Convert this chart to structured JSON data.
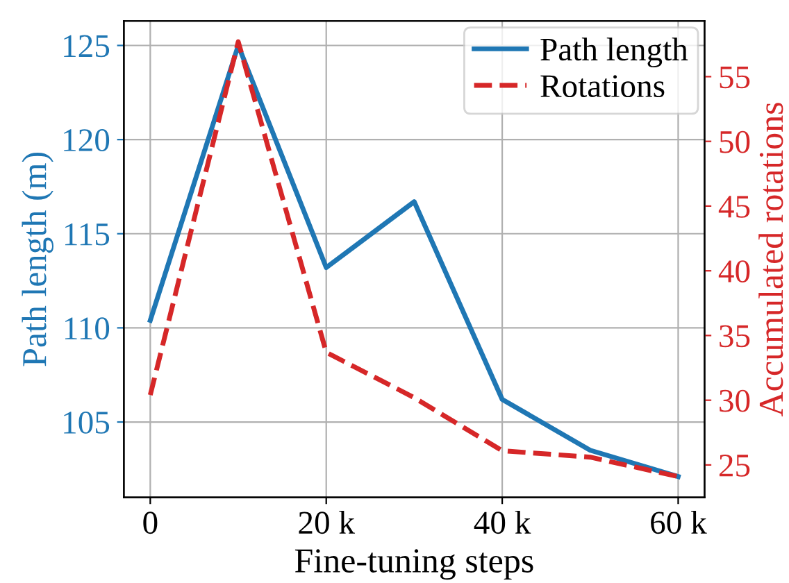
{
  "chart_data": {
    "type": "line",
    "xlabel": "Fine-tuning steps",
    "ylabel": "Path length (m)",
    "y2label": "Accumulated rotations",
    "x": [
      0,
      10000,
      20000,
      30000,
      40000,
      50000,
      60000
    ],
    "xlim": [
      -3000,
      63000
    ],
    "xticks": [
      0,
      {
        "value": 20000,
        "label": "20 k"
      },
      {
        "value": 40000,
        "label": "40 k"
      },
      {
        "value": 60000,
        "label": "60 k"
      }
    ],
    "ylim": [
      101.0,
      126.3
    ],
    "yticks": [
      105,
      110,
      115,
      120,
      125
    ],
    "y2lim": [
      22.5,
      59.3
    ],
    "y2ticks": [
      25,
      30,
      35,
      40,
      45,
      50,
      55
    ],
    "series": [
      {
        "name": "Path length",
        "color": "#1f77b4",
        "line_style": "solid",
        "values": [
          110.4,
          125.0,
          113.2,
          116.7,
          106.2,
          103.5,
          102.1
        ]
      },
      {
        "name": "Rotations",
        "color": "#d62728",
        "line_style": "dashed",
        "axis": "y2",
        "values": [
          30.4,
          57.7,
          33.7,
          30.2,
          26.1,
          25.6,
          24.1
        ]
      }
    ],
    "grid": true,
    "legend": "top right",
    "marker": "none"
  }
}
